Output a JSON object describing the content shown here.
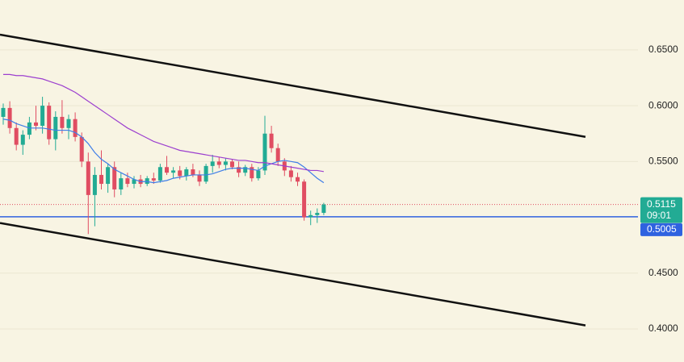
{
  "chart_data": {
    "type": "candlestick",
    "ylim": [
      0.3704,
      0.6947
    ],
    "yticks": [
      {
        "value": 0.65,
        "label": "0.6500"
      },
      {
        "value": 0.6,
        "label": "0.6000"
      },
      {
        "value": 0.55,
        "label": "0.5500"
      },
      {
        "value": 0.45,
        "label": "0.4500"
      },
      {
        "value": 0.4,
        "label": "0.4000"
      }
    ],
    "grid": true,
    "up_color": "#22ab94",
    "down_color": "#e04d62",
    "candles": {
      "open": [
        0.59,
        0.598,
        0.58,
        0.565,
        0.574,
        0.585,
        0.582,
        0.6,
        0.57,
        0.59,
        0.58,
        0.588,
        0.572,
        0.55,
        0.52,
        0.538,
        0.53,
        0.545,
        0.525,
        0.535,
        0.53,
        0.534,
        0.53,
        0.535,
        0.533,
        0.545,
        0.54,
        0.542,
        0.537,
        0.543,
        0.538,
        0.532,
        0.546,
        0.55,
        0.547,
        0.55,
        0.545,
        0.54,
        0.545,
        0.535,
        0.542,
        0.575,
        0.562,
        0.55,
        0.542,
        0.536,
        0.532,
        0.5,
        0.502,
        0.504
      ],
      "high": [
        0.602,
        0.604,
        0.585,
        0.578,
        0.59,
        0.6,
        0.608,
        0.603,
        0.595,
        0.605,
        0.592,
        0.594,
        0.576,
        0.558,
        0.545,
        0.56,
        0.548,
        0.55,
        0.54,
        0.54,
        0.537,
        0.538,
        0.537,
        0.54,
        0.548,
        0.555,
        0.545,
        0.546,
        0.545,
        0.548,
        0.542,
        0.548,
        0.556,
        0.554,
        0.553,
        0.552,
        0.55,
        0.547,
        0.548,
        0.545,
        0.591,
        0.582,
        0.566,
        0.553,
        0.546,
        0.54,
        0.534,
        0.506,
        0.508,
        0.513
      ],
      "low": [
        0.583,
        0.575,
        0.56,
        0.556,
        0.57,
        0.578,
        0.575,
        0.565,
        0.56,
        0.575,
        0.57,
        0.568,
        0.545,
        0.485,
        0.492,
        0.525,
        0.522,
        0.518,
        0.52,
        0.527,
        0.526,
        0.527,
        0.528,
        0.53,
        0.531,
        0.538,
        0.535,
        0.534,
        0.533,
        0.536,
        0.528,
        0.53,
        0.54,
        0.544,
        0.542,
        0.543,
        0.536,
        0.537,
        0.532,
        0.533,
        0.538,
        0.558,
        0.546,
        0.537,
        0.532,
        0.528,
        0.497,
        0.493,
        0.495,
        0.502
      ],
      "close": [
        0.598,
        0.58,
        0.565,
        0.574,
        0.585,
        0.582,
        0.6,
        0.57,
        0.59,
        0.58,
        0.588,
        0.572,
        0.55,
        0.52,
        0.538,
        0.53,
        0.545,
        0.525,
        0.535,
        0.53,
        0.534,
        0.53,
        0.535,
        0.533,
        0.545,
        0.54,
        0.542,
        0.537,
        0.543,
        0.538,
        0.532,
        0.546,
        0.55,
        0.547,
        0.55,
        0.545,
        0.54,
        0.545,
        0.535,
        0.542,
        0.575,
        0.562,
        0.55,
        0.542,
        0.536,
        0.532,
        0.5,
        0.502,
        0.504,
        0.5115
      ]
    },
    "series": [
      {
        "color": "#3f7ee8",
        "values": [
          0.588,
          0.587,
          0.584,
          0.582,
          0.58,
          0.58,
          0.58,
          0.579,
          0.578,
          0.578,
          0.578,
          0.576,
          0.572,
          0.566,
          0.558,
          0.552,
          0.548,
          0.543,
          0.54,
          0.537,
          0.534,
          0.532,
          0.532,
          0.531,
          0.532,
          0.533,
          0.535,
          0.536,
          0.537,
          0.538,
          0.538,
          0.538,
          0.539,
          0.541,
          0.543,
          0.544,
          0.544,
          0.544,
          0.543,
          0.542,
          0.546,
          0.548,
          0.55,
          0.551,
          0.55,
          0.549,
          0.545,
          0.54,
          0.535,
          0.531
        ]
      },
      {
        "color": "#9c3fcf",
        "values": [
          0.628,
          0.628,
          0.627,
          0.627,
          0.626,
          0.625,
          0.624,
          0.622,
          0.62,
          0.618,
          0.615,
          0.612,
          0.608,
          0.604,
          0.6,
          0.596,
          0.592,
          0.588,
          0.584,
          0.58,
          0.577,
          0.574,
          0.571,
          0.568,
          0.566,
          0.564,
          0.562,
          0.56,
          0.559,
          0.558,
          0.557,
          0.556,
          0.555,
          0.554,
          0.553,
          0.552,
          0.551,
          0.551,
          0.55,
          0.549,
          0.549,
          0.548,
          0.547,
          0.546,
          0.545,
          0.544,
          0.543,
          0.542,
          0.542,
          0.541
        ]
      }
    ],
    "trendlines": [
      {
        "color": "#111111",
        "values": [
          0.6637,
          0.5721
        ]
      },
      {
        "color": "#111111",
        "values": [
          0.4949,
          0.4032
        ]
      }
    ],
    "last_price": 0.5115,
    "countdown": "09:01",
    "level": 0.5005,
    "level_color": "#2f62e0"
  }
}
